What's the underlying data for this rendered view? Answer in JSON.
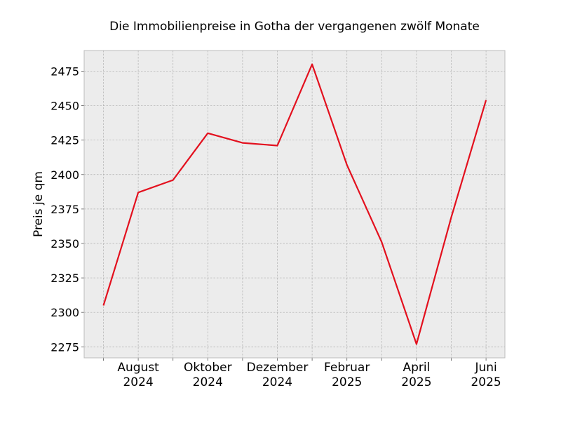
{
  "chart_data": {
    "type": "line",
    "title": "Die Immobilienpreise in Gotha der vergangenen zwölf Monate",
    "xlabel": "",
    "ylabel": "Preis je qm",
    "x": [
      "2024-07",
      "2024-08",
      "2024-09",
      "2024-10",
      "2024-11",
      "2024-12",
      "2025-01",
      "2025-02",
      "2025-03",
      "2025-04",
      "2025-05",
      "2025-06"
    ],
    "series": [
      {
        "values": [
          2305,
          2387,
          2396,
          2430,
          2423,
          2421,
          2480,
          2407,
          2351,
          2277,
          2369,
          2454
        ]
      }
    ],
    "x_tick_labels": [
      {
        "x": "2024-08",
        "line1": "August",
        "line2": "2024"
      },
      {
        "x": "2024-10",
        "line1": "Oktober",
        "line2": "2024"
      },
      {
        "x": "2024-12",
        "line1": "Dezember",
        "line2": "2024"
      },
      {
        "x": "2025-02",
        "line1": "Februar",
        "line2": "2025"
      },
      {
        "x": "2025-04",
        "line1": "April",
        "line2": "2025"
      },
      {
        "x": "2025-06",
        "line1": "Juni",
        "line2": "2025"
      }
    ],
    "y_ticks": [
      2275,
      2300,
      2325,
      2350,
      2375,
      2400,
      2425,
      2450,
      2475
    ],
    "ylim": [
      2267,
      2490
    ],
    "grid": true,
    "colors": {
      "line": "#e3101e",
      "background": "#ececec",
      "grid": "#b0b0b0",
      "frame": "#bcbcbc"
    }
  }
}
